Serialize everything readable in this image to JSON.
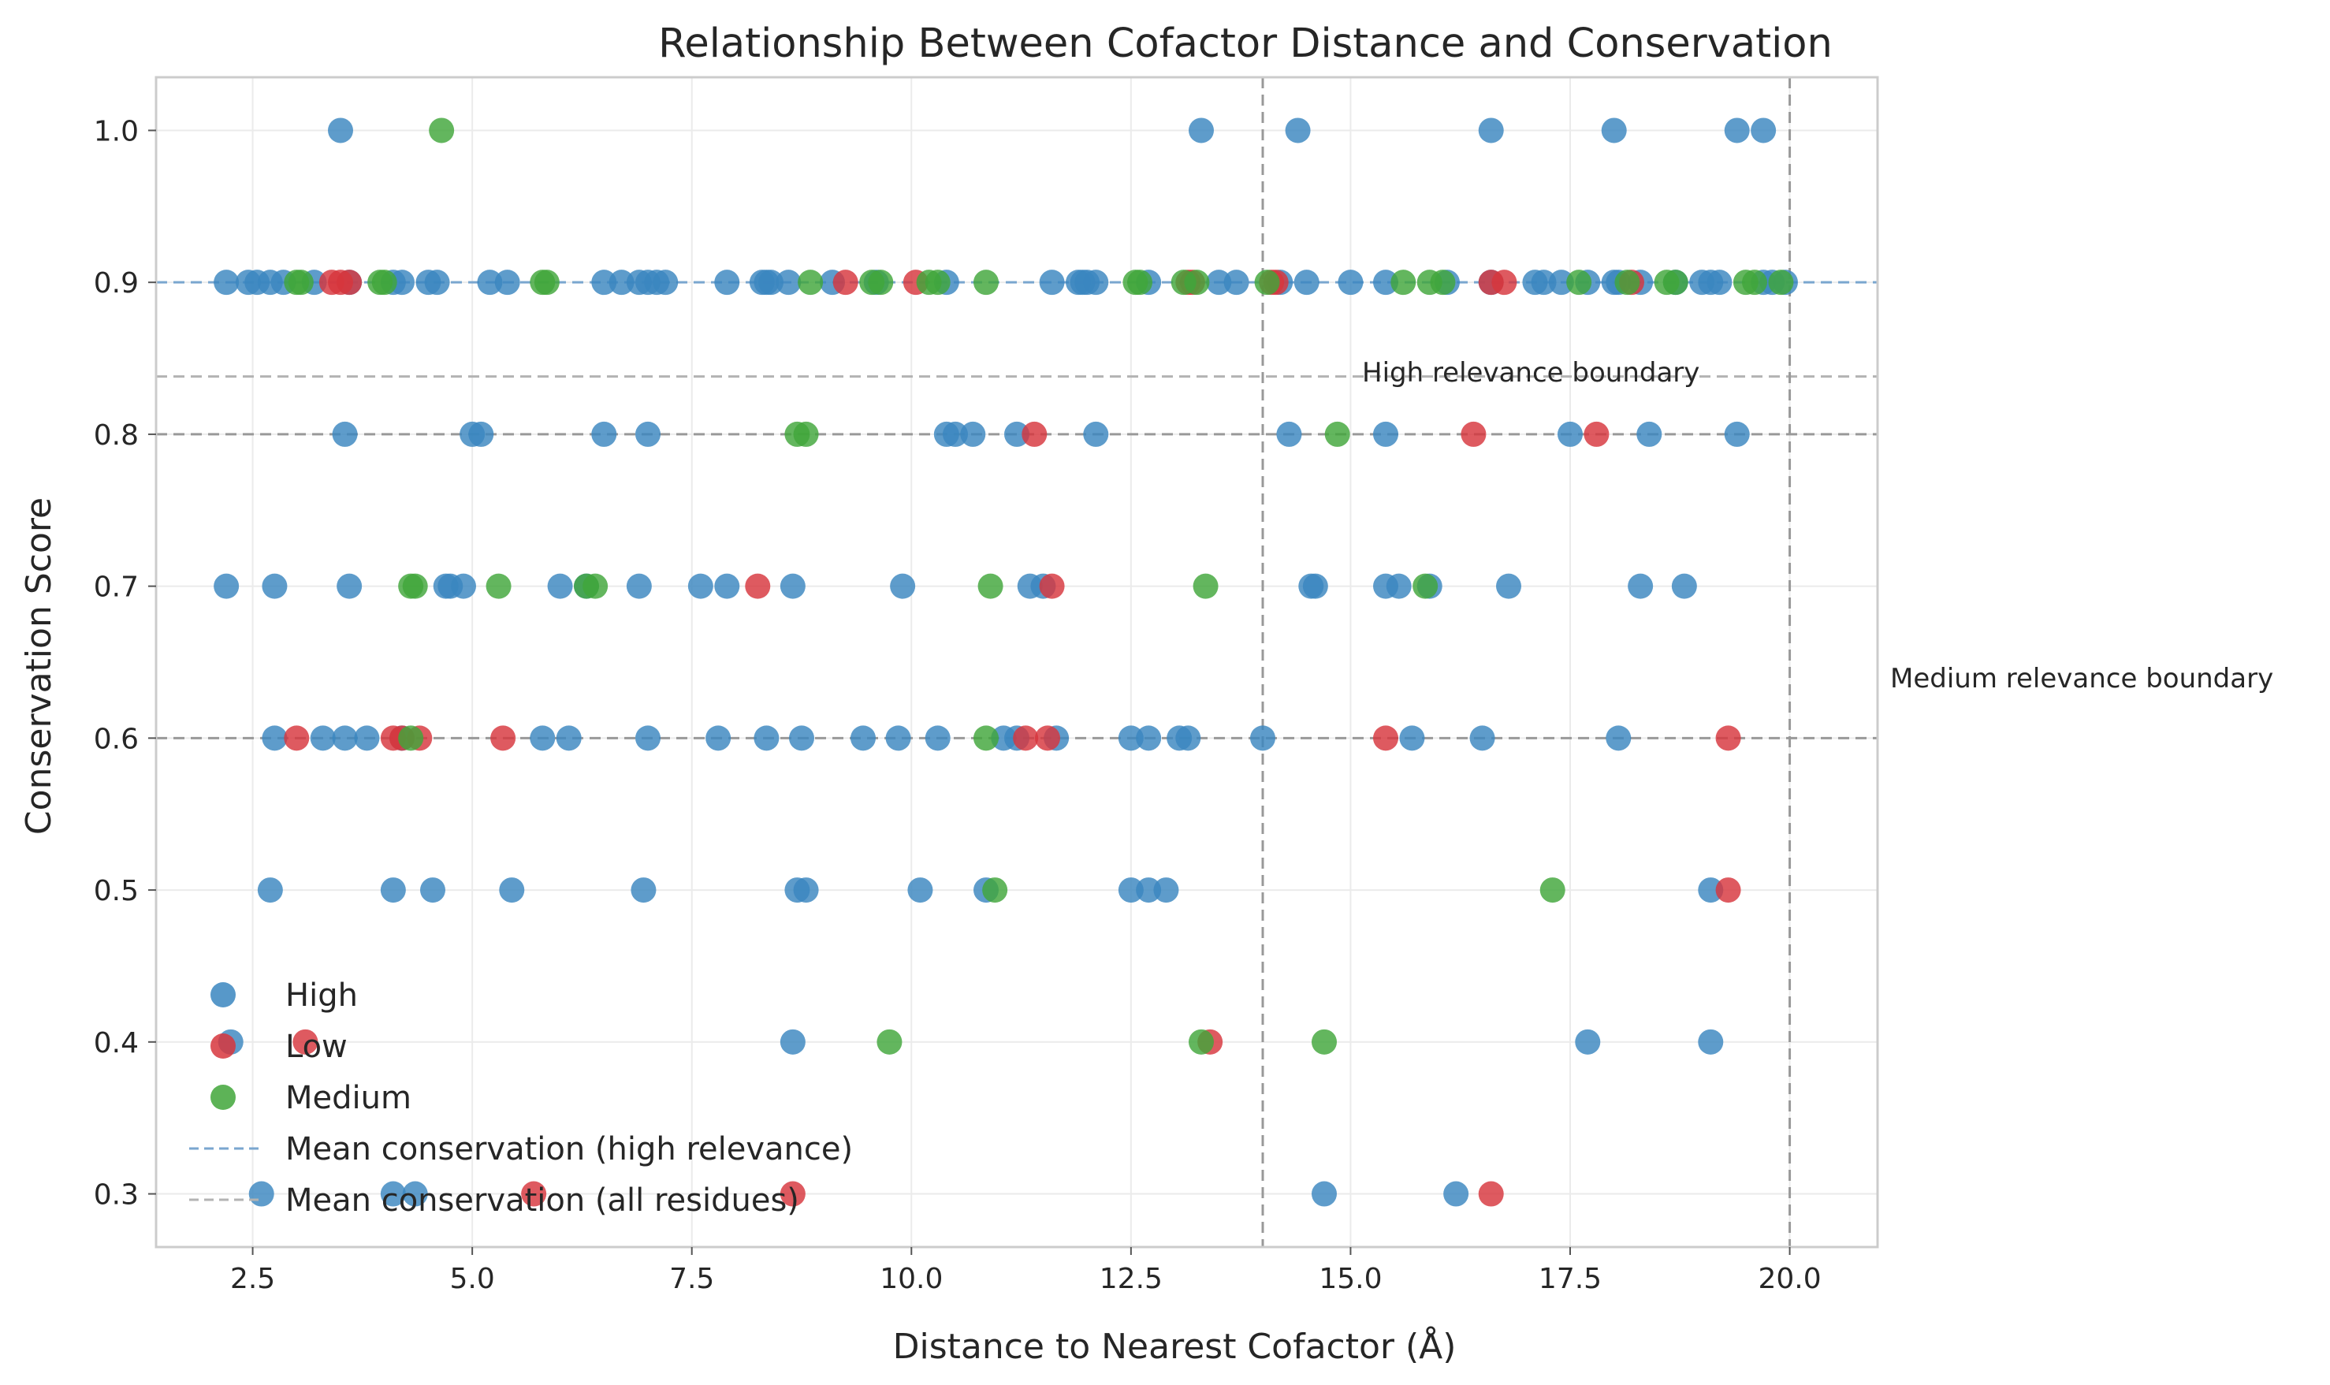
{
  "chart_data": {
    "type": "scatter",
    "title": "Relationship Between Cofactor Distance and Conservation",
    "xlabel": "Distance to Nearest Cofactor (Å)",
    "ylabel": "Conservation Score",
    "xlim": [
      1.4,
      21.0
    ],
    "ylim": [
      0.265,
      1.035
    ],
    "x_ticks": [
      2.5,
      5.0,
      7.5,
      10.0,
      12.5,
      15.0,
      17.5,
      20.0
    ],
    "x_tick_labels": [
      "2.5",
      "5.0",
      "7.5",
      "10.0",
      "12.5",
      "15.0",
      "17.5",
      "20.0"
    ],
    "y_ticks": [
      0.3,
      0.4,
      0.5,
      0.6,
      0.7,
      0.8,
      0.9,
      1.0
    ],
    "y_tick_labels": [
      "0.3",
      "0.4",
      "0.5",
      "0.6",
      "0.7",
      "0.8",
      "0.9",
      "1.0"
    ],
    "grid": true,
    "legend_position": "lower-left",
    "series": [
      {
        "name": "High",
        "color": "#3a86c0",
        "points": [
          [
            3.5,
            1.0
          ],
          [
            13.3,
            1.0
          ],
          [
            14.4,
            1.0
          ],
          [
            16.6,
            1.0
          ],
          [
            18.0,
            1.0
          ],
          [
            19.4,
            1.0
          ],
          [
            19.7,
            1.0
          ],
          [
            2.2,
            0.9
          ],
          [
            2.45,
            0.9
          ],
          [
            2.55,
            0.9
          ],
          [
            2.7,
            0.9
          ],
          [
            2.85,
            0.9
          ],
          [
            3.2,
            0.9
          ],
          [
            3.6,
            0.9
          ],
          [
            4.1,
            0.9
          ],
          [
            4.2,
            0.9
          ],
          [
            4.5,
            0.9
          ],
          [
            4.6,
            0.9
          ],
          [
            5.2,
            0.9
          ],
          [
            5.4,
            0.9
          ],
          [
            6.5,
            0.9
          ],
          [
            6.7,
            0.9
          ],
          [
            6.9,
            0.9
          ],
          [
            7.0,
            0.9
          ],
          [
            7.1,
            0.9
          ],
          [
            7.2,
            0.9
          ],
          [
            7.9,
            0.9
          ],
          [
            8.3,
            0.9
          ],
          [
            8.35,
            0.9
          ],
          [
            8.4,
            0.9
          ],
          [
            8.6,
            0.9
          ],
          [
            9.1,
            0.9
          ],
          [
            9.6,
            0.9
          ],
          [
            10.4,
            0.9
          ],
          [
            11.6,
            0.9
          ],
          [
            11.9,
            0.9
          ],
          [
            11.95,
            0.9
          ],
          [
            12.0,
            0.9
          ],
          [
            12.1,
            0.9
          ],
          [
            12.7,
            0.9
          ],
          [
            13.5,
            0.9
          ],
          [
            13.7,
            0.9
          ],
          [
            14.2,
            0.9
          ],
          [
            14.5,
            0.9
          ],
          [
            15.0,
            0.9
          ],
          [
            15.4,
            0.9
          ],
          [
            16.1,
            0.9
          ],
          [
            16.6,
            0.9
          ],
          [
            17.1,
            0.9
          ],
          [
            17.2,
            0.9
          ],
          [
            17.4,
            0.9
          ],
          [
            17.7,
            0.9
          ],
          [
            18.0,
            0.9
          ],
          [
            18.05,
            0.9
          ],
          [
            18.3,
            0.9
          ],
          [
            18.7,
            0.9
          ],
          [
            19.0,
            0.9
          ],
          [
            19.1,
            0.9
          ],
          [
            19.2,
            0.9
          ],
          [
            19.7,
            0.9
          ],
          [
            19.8,
            0.9
          ],
          [
            19.95,
            0.9
          ],
          [
            3.55,
            0.8
          ],
          [
            5.0,
            0.8
          ],
          [
            5.1,
            0.8
          ],
          [
            6.5,
            0.8
          ],
          [
            7.0,
            0.8
          ],
          [
            10.4,
            0.8
          ],
          [
            10.5,
            0.8
          ],
          [
            10.7,
            0.8
          ],
          [
            11.2,
            0.8
          ],
          [
            12.1,
            0.8
          ],
          [
            14.3,
            0.8
          ],
          [
            15.4,
            0.8
          ],
          [
            17.5,
            0.8
          ],
          [
            18.4,
            0.8
          ],
          [
            19.4,
            0.8
          ],
          [
            2.2,
            0.7
          ],
          [
            2.75,
            0.7
          ],
          [
            3.6,
            0.7
          ],
          [
            4.7,
            0.7
          ],
          [
            4.75,
            0.7
          ],
          [
            4.9,
            0.7
          ],
          [
            6.0,
            0.7
          ],
          [
            6.3,
            0.7
          ],
          [
            6.9,
            0.7
          ],
          [
            7.6,
            0.7
          ],
          [
            7.9,
            0.7
          ],
          [
            8.65,
            0.7
          ],
          [
            9.9,
            0.7
          ],
          [
            11.35,
            0.7
          ],
          [
            11.5,
            0.7
          ],
          [
            14.55,
            0.7
          ],
          [
            14.6,
            0.7
          ],
          [
            15.4,
            0.7
          ],
          [
            15.55,
            0.7
          ],
          [
            15.9,
            0.7
          ],
          [
            16.8,
            0.7
          ],
          [
            18.3,
            0.7
          ],
          [
            18.8,
            0.7
          ],
          [
            2.75,
            0.6
          ],
          [
            3.3,
            0.6
          ],
          [
            3.55,
            0.6
          ],
          [
            3.8,
            0.6
          ],
          [
            4.2,
            0.6
          ],
          [
            5.8,
            0.6
          ],
          [
            6.1,
            0.6
          ],
          [
            7.0,
            0.6
          ],
          [
            7.8,
            0.6
          ],
          [
            8.35,
            0.6
          ],
          [
            8.75,
            0.6
          ],
          [
            9.45,
            0.6
          ],
          [
            9.85,
            0.6
          ],
          [
            10.3,
            0.6
          ],
          [
            11.05,
            0.6
          ],
          [
            11.2,
            0.6
          ],
          [
            11.65,
            0.6
          ],
          [
            12.5,
            0.6
          ],
          [
            12.7,
            0.6
          ],
          [
            13.05,
            0.6
          ],
          [
            13.15,
            0.6
          ],
          [
            14.0,
            0.6
          ],
          [
            15.7,
            0.6
          ],
          [
            16.5,
            0.6
          ],
          [
            18.05,
            0.6
          ],
          [
            2.7,
            0.5
          ],
          [
            4.1,
            0.5
          ],
          [
            4.55,
            0.5
          ],
          [
            5.45,
            0.5
          ],
          [
            6.95,
            0.5
          ],
          [
            8.7,
            0.5
          ],
          [
            8.8,
            0.5
          ],
          [
            10.1,
            0.5
          ],
          [
            10.85,
            0.5
          ],
          [
            12.5,
            0.5
          ],
          [
            12.7,
            0.5
          ],
          [
            12.9,
            0.5
          ],
          [
            19.1,
            0.5
          ],
          [
            2.25,
            0.4
          ],
          [
            8.65,
            0.4
          ],
          [
            17.7,
            0.4
          ],
          [
            19.1,
            0.4
          ],
          [
            2.6,
            0.3
          ],
          [
            4.1,
            0.3
          ],
          [
            4.35,
            0.3
          ],
          [
            14.7,
            0.3
          ],
          [
            16.2,
            0.3
          ]
        ]
      },
      {
        "name": "Low",
        "color": "#d7363d",
        "points": [
          [
            3.4,
            0.9
          ],
          [
            3.5,
            0.9
          ],
          [
            3.6,
            0.9
          ],
          [
            9.25,
            0.9
          ],
          [
            10.05,
            0.9
          ],
          [
            13.15,
            0.9
          ],
          [
            13.2,
            0.9
          ],
          [
            14.1,
            0.9
          ],
          [
            14.15,
            0.9
          ],
          [
            16.6,
            0.9
          ],
          [
            16.75,
            0.9
          ],
          [
            18.2,
            0.9
          ],
          [
            11.4,
            0.8
          ],
          [
            16.4,
            0.8
          ],
          [
            17.8,
            0.8
          ],
          [
            8.25,
            0.7
          ],
          [
            11.6,
            0.7
          ],
          [
            3.0,
            0.6
          ],
          [
            4.1,
            0.6
          ],
          [
            4.2,
            0.6
          ],
          [
            4.4,
            0.6
          ],
          [
            5.35,
            0.6
          ],
          [
            11.3,
            0.6
          ],
          [
            11.55,
            0.6
          ],
          [
            15.4,
            0.6
          ],
          [
            19.3,
            0.6
          ],
          [
            19.3,
            0.5
          ],
          [
            3.1,
            0.4
          ],
          [
            13.4,
            0.4
          ],
          [
            5.7,
            0.3
          ],
          [
            8.65,
            0.3
          ],
          [
            16.6,
            0.3
          ]
        ]
      },
      {
        "name": "Medium",
        "color": "#41a63a",
        "points": [
          [
            4.65,
            1.0
          ],
          [
            3.0,
            0.9
          ],
          [
            3.05,
            0.9
          ],
          [
            3.95,
            0.9
          ],
          [
            4.0,
            0.9
          ],
          [
            5.8,
            0.9
          ],
          [
            5.85,
            0.9
          ],
          [
            8.85,
            0.9
          ],
          [
            9.55,
            0.9
          ],
          [
            9.65,
            0.9
          ],
          [
            10.2,
            0.9
          ],
          [
            10.3,
            0.9
          ],
          [
            10.85,
            0.9
          ],
          [
            12.55,
            0.9
          ],
          [
            12.6,
            0.9
          ],
          [
            13.1,
            0.9
          ],
          [
            13.25,
            0.9
          ],
          [
            14.05,
            0.9
          ],
          [
            15.6,
            0.9
          ],
          [
            15.9,
            0.9
          ],
          [
            16.05,
            0.9
          ],
          [
            17.6,
            0.9
          ],
          [
            18.15,
            0.9
          ],
          [
            18.6,
            0.9
          ],
          [
            18.7,
            0.9
          ],
          [
            19.5,
            0.9
          ],
          [
            19.6,
            0.9
          ],
          [
            19.9,
            0.9
          ],
          [
            8.7,
            0.8
          ],
          [
            8.8,
            0.8
          ],
          [
            14.85,
            0.8
          ],
          [
            4.3,
            0.7
          ],
          [
            4.35,
            0.7
          ],
          [
            5.3,
            0.7
          ],
          [
            6.3,
            0.7
          ],
          [
            6.4,
            0.7
          ],
          [
            10.9,
            0.7
          ],
          [
            13.35,
            0.7
          ],
          [
            15.85,
            0.7
          ],
          [
            4.3,
            0.6
          ],
          [
            10.85,
            0.6
          ],
          [
            10.95,
            0.5
          ],
          [
            17.3,
            0.5
          ],
          [
            9.75,
            0.4
          ],
          [
            13.3,
            0.4
          ],
          [
            14.7,
            0.4
          ]
        ]
      }
    ],
    "reference_lines": [
      {
        "orientation": "horizontal",
        "value": 0.9,
        "style": "dashed",
        "color": "#7aa6cf",
        "label": "Mean conservation (high relevance)"
      },
      {
        "orientation": "horizontal",
        "value": 0.838,
        "style": "dashed",
        "color": "#b3b3b3",
        "label": "Mean conservation (all residues)"
      },
      {
        "orientation": "horizontal",
        "value": 0.8,
        "style": "dashed",
        "color": "#999999"
      },
      {
        "orientation": "horizontal",
        "value": 0.6,
        "style": "dashed",
        "color": "#999999"
      },
      {
        "orientation": "vertical",
        "value": 14.0,
        "style": "dashed",
        "color": "#999999"
      },
      {
        "orientation": "vertical",
        "value": 20.0,
        "style": "dashed",
        "color": "#999999"
      }
    ],
    "annotations": [
      {
        "text": "High relevance boundary"
      },
      {
        "text": "Medium relevance boundary"
      }
    ]
  }
}
